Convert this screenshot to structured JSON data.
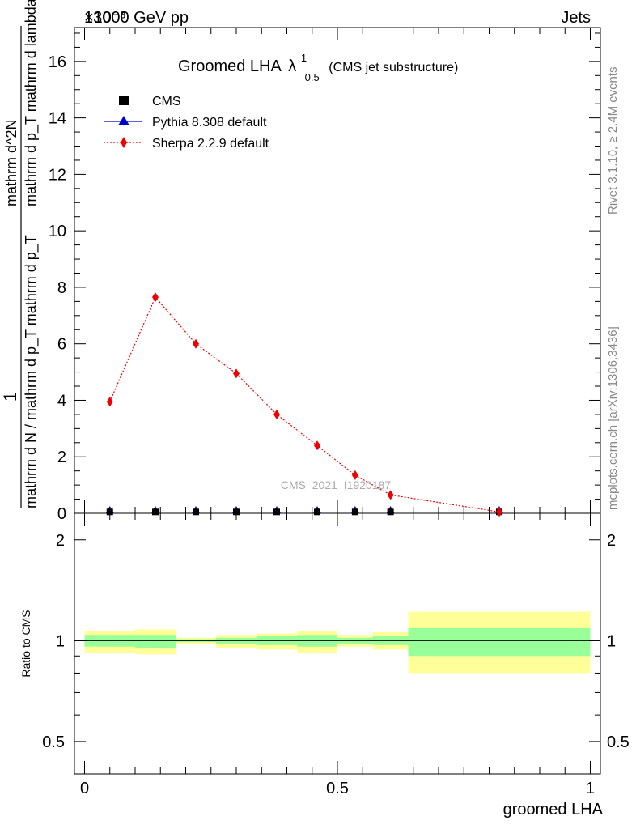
{
  "header": {
    "left": "13000 GeV pp",
    "right": "Jets",
    "exponent": "×10⁻³"
  },
  "side": {
    "rivet": "Rivet 3.1.10, ≥ 2.4M events",
    "mcplots": "mcplots.cern.ch [arXiv:1306.3436]"
  },
  "watermark": "CMS_2021_I1920187",
  "colors": {
    "cms": "#000000",
    "pythia": "#0000cc",
    "sherpa": "#ee0000",
    "band_inner": "#99ff99",
    "band_outer": "#ffff99"
  },
  "chart_data": [
    {
      "type": "line",
      "title": "Groomed LHA",
      "title_symbol": "λ",
      "title_sup": "1",
      "title_sub": "0.5",
      "title_note": "(CMS jet substructure)",
      "xlabel": "groomed LHA",
      "ylabel": {
        "numer_one": "1",
        "denom": "mathrm d N / mathrm d p_T mathrm d p_T",
        "derivative_numer": "mathrm d^2N",
        "derivative_denom": "mathrm d p_T mathrm d lambda"
      },
      "xlim": [
        -0.02,
        1.02
      ],
      "ylim": [
        0,
        17.2
      ],
      "y_scale_factor": "1e-3",
      "xticks": [
        "0",
        "0.5",
        "1"
      ],
      "yticks": [
        "0",
        "2",
        "4",
        "6",
        "8",
        "10",
        "12",
        "14",
        "16"
      ],
      "legend_position": "top-left",
      "series": [
        {
          "name": "CMS",
          "marker": "square",
          "x": [
            0.05,
            0.14,
            0.22,
            0.3,
            0.38,
            0.46,
            0.535,
            0.605,
            0.82
          ],
          "y": [
            0.02,
            0.02,
            0.02,
            0.02,
            0.02,
            0.02,
            0.02,
            0.02,
            0.02
          ]
        },
        {
          "name": "Pythia 8.308 default",
          "marker": "triangle",
          "x": [
            0.05,
            0.14,
            0.22,
            0.3,
            0.38,
            0.46,
            0.535,
            0.605,
            0.82
          ],
          "y": [
            0.0,
            0.0,
            0.0,
            0.0,
            0.0,
            0.0,
            0.0,
            0.0,
            0.0
          ]
        },
        {
          "name": "Sherpa 2.2.9 default",
          "marker": "diamond",
          "x": [
            0.05,
            0.14,
            0.22,
            0.3,
            0.38,
            0.46,
            0.535,
            0.605,
            0.82
          ],
          "y": [
            3.95,
            7.65,
            6.0,
            4.95,
            3.5,
            2.4,
            1.35,
            0.65,
            0.05
          ]
        }
      ]
    },
    {
      "type": "area",
      "ylabel": "Ratio to CMS",
      "xlim": [
        -0.02,
        1.02
      ],
      "ylim": [
        0.4,
        2.4
      ],
      "y_scale": "log",
      "yticks": [
        "0.5",
        "1",
        "2"
      ],
      "bins": [
        {
          "x0": 0.0,
          "x1": 0.1,
          "inner": [
            0.96,
            1.04
          ],
          "outer": [
            0.92,
            1.07
          ]
        },
        {
          "x0": 0.1,
          "x1": 0.18,
          "inner": [
            0.95,
            1.04
          ],
          "outer": [
            0.91,
            1.08
          ]
        },
        {
          "x0": 0.18,
          "x1": 0.26,
          "inner": [
            0.99,
            1.01
          ],
          "outer": [
            0.98,
            1.02
          ]
        },
        {
          "x0": 0.26,
          "x1": 0.34,
          "inner": [
            0.98,
            1.02
          ],
          "outer": [
            0.95,
            1.04
          ]
        },
        {
          "x0": 0.34,
          "x1": 0.42,
          "inner": [
            0.97,
            1.03
          ],
          "outer": [
            0.94,
            1.05
          ]
        },
        {
          "x0": 0.42,
          "x1": 0.5,
          "inner": [
            0.96,
            1.04
          ],
          "outer": [
            0.92,
            1.07
          ]
        },
        {
          "x0": 0.5,
          "x1": 0.57,
          "inner": [
            0.98,
            1.02
          ],
          "outer": [
            0.96,
            1.04
          ]
        },
        {
          "x0": 0.57,
          "x1": 0.64,
          "inner": [
            0.97,
            1.03
          ],
          "outer": [
            0.94,
            1.06
          ]
        },
        {
          "x0": 0.64,
          "x1": 1.0,
          "inner": [
            0.9,
            1.09
          ],
          "outer": [
            0.8,
            1.22
          ]
        }
      ]
    }
  ]
}
